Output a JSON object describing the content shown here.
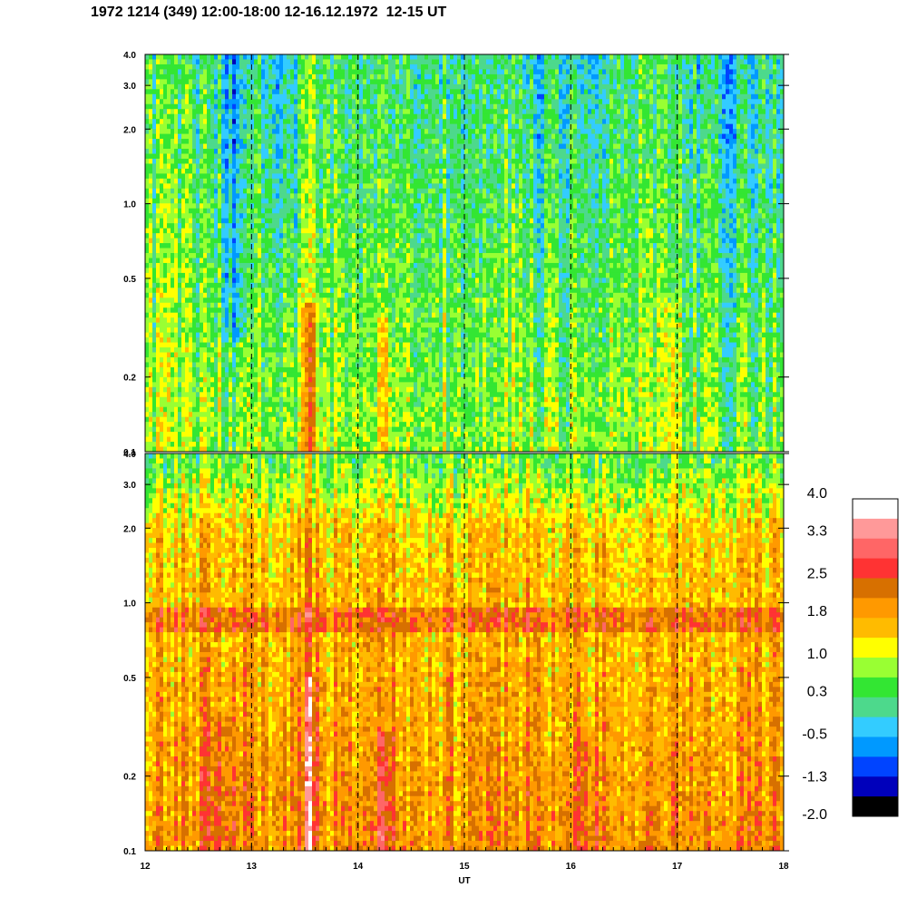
{
  "title": "1972 1214 (349) 12:00-18:00 12-16.12.1972  12-15 UT",
  "chart_data": {
    "type": "heatmap",
    "panels": [
      {
        "name": "upper",
        "y_scale": "log",
        "ylim": [
          0.1,
          4.0
        ],
        "y_ticks": [
          "0.1",
          "0.2",
          "0.5",
          "1.0",
          "2.0",
          "3.0",
          "4.0"
        ],
        "y_tick_values": [
          0.1,
          0.2,
          0.5,
          1.0,
          2.0,
          3.0,
          4.0
        ],
        "dominant_level": 0.3,
        "low_level_bands": [
          {
            "x": 12.85,
            "y_range": [
              0.3,
              4.0
            ],
            "level": -1.3
          }
        ],
        "high_level_bands": [
          {
            "x": 13.55,
            "y_range": [
              0.1,
              0.4
            ],
            "level": 1.8
          }
        ]
      },
      {
        "name": "lower",
        "y_scale": "log",
        "ylim": [
          0.1,
          4.0
        ],
        "y_ticks": [
          "0.1",
          "0.2",
          "0.5",
          "1.0",
          "2.0",
          "3.0",
          "4.0"
        ],
        "y_tick_values": [
          0.1,
          0.2,
          0.5,
          1.0,
          2.0,
          3.0,
          4.0
        ],
        "dominant_level": 1.8,
        "horizontal_band": {
          "y_range": [
            0.75,
            0.95
          ],
          "level": 2.5
        },
        "high_level_bands": [
          {
            "x": 13.55,
            "y_range": [
              0.1,
              0.5
            ],
            "level": 3.3
          },
          {
            "x": 14.25,
            "y_range": [
              0.1,
              0.3
            ],
            "level": 2.8
          }
        ]
      }
    ],
    "x": {
      "label": "UT",
      "range": [
        12,
        18
      ],
      "ticks": [
        "12",
        "13",
        "14",
        "15",
        "16",
        "17",
        "18"
      ],
      "tick_values": [
        12,
        13,
        14,
        15,
        16,
        17,
        18
      ],
      "dashed_markers": [
        13,
        14,
        15,
        16,
        17
      ]
    },
    "colorbar": {
      "ticks": [
        "4.0",
        "3.3",
        "2.5",
        "1.8",
        "1.0",
        "0.3",
        "-0.5",
        "-1.3",
        "-2.0"
      ],
      "tick_values": [
        4.0,
        3.3,
        2.5,
        1.8,
        1.0,
        0.3,
        -0.5,
        -1.3,
        -2.0
      ],
      "colors": [
        "#ffffff",
        "#ff9999",
        "#ff6666",
        "#ff3333",
        "#d77000",
        "#ff9900",
        "#ffbb00",
        "#ffff00",
        "#99ff33",
        "#33e633",
        "#4dd98c",
        "#33ccff",
        "#0099ff",
        "#0044ff",
        "#0000bb",
        "#000000"
      ]
    }
  }
}
